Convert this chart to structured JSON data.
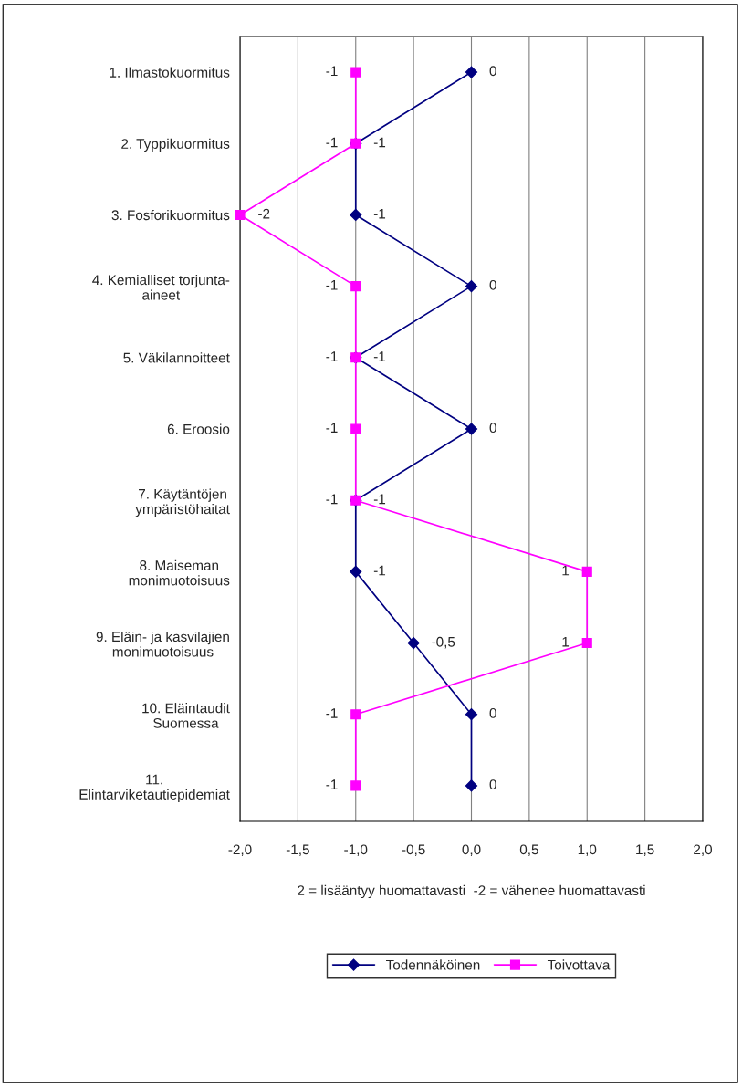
{
  "chart_data": {
    "type": "line",
    "orientation": "horizontal",
    "categories": [
      "1. Ilmastokuormitus",
      "2. Typpikuormitus",
      "3. Fosforikuormitus",
      "4. Kemialliset torjunta-\naineet",
      "5. Väkilannoitteet",
      "6. Eroosio",
      "7. Käytäntöjen\nympäristöhaitat",
      "8. Maiseman\nmonimuotoisuus",
      "9. Eläin- ja kasvilajien\nmonimuotoisuus",
      "10. Eläintaudit\nSuomessa",
      "11.\nElintarviketautiepidemiat"
    ],
    "series": [
      {
        "name": "Todennäköinen",
        "color": "#000080",
        "marker": "diamond",
        "values": [
          0,
          -1,
          -1,
          0,
          -1,
          0,
          -1,
          -1,
          -0.5,
          0,
          0
        ],
        "value_labels": [
          "0",
          "-1",
          "-1",
          "0",
          "-1",
          "0",
          "-1",
          "-1",
          "-0,5",
          "0",
          "0"
        ]
      },
      {
        "name": "Toivottava",
        "color": "#ff00ff",
        "marker": "square",
        "values": [
          -1,
          -1,
          -2,
          -1,
          -1,
          -1,
          -1,
          1,
          1,
          -1,
          -1
        ],
        "value_labels": [
          "-1",
          "-1",
          "-2",
          "-1",
          "-1",
          "-1",
          "-1",
          "1",
          "1",
          "-1",
          "-1"
        ]
      }
    ],
    "xlim": [
      -2,
      2
    ],
    "xticks": [
      {
        "value": -2,
        "label": "-2,0"
      },
      {
        "value": -1.5,
        "label": "-1,5"
      },
      {
        "value": -1,
        "label": "-1,0"
      },
      {
        "value": -0.5,
        "label": "-0,5"
      },
      {
        "value": 0,
        "label": "0,0"
      },
      {
        "value": 0.5,
        "label": "0,5"
      },
      {
        "value": 1,
        "label": "1,0"
      },
      {
        "value": 1.5,
        "label": "1,5"
      },
      {
        "value": 2,
        "label": "2,0"
      }
    ],
    "xlabel": "2 = lisääntyy huomattavasti  -2 = vähenee huomattavasti",
    "grid": "x",
    "legend": "bottom",
    "line_style": "solid"
  }
}
